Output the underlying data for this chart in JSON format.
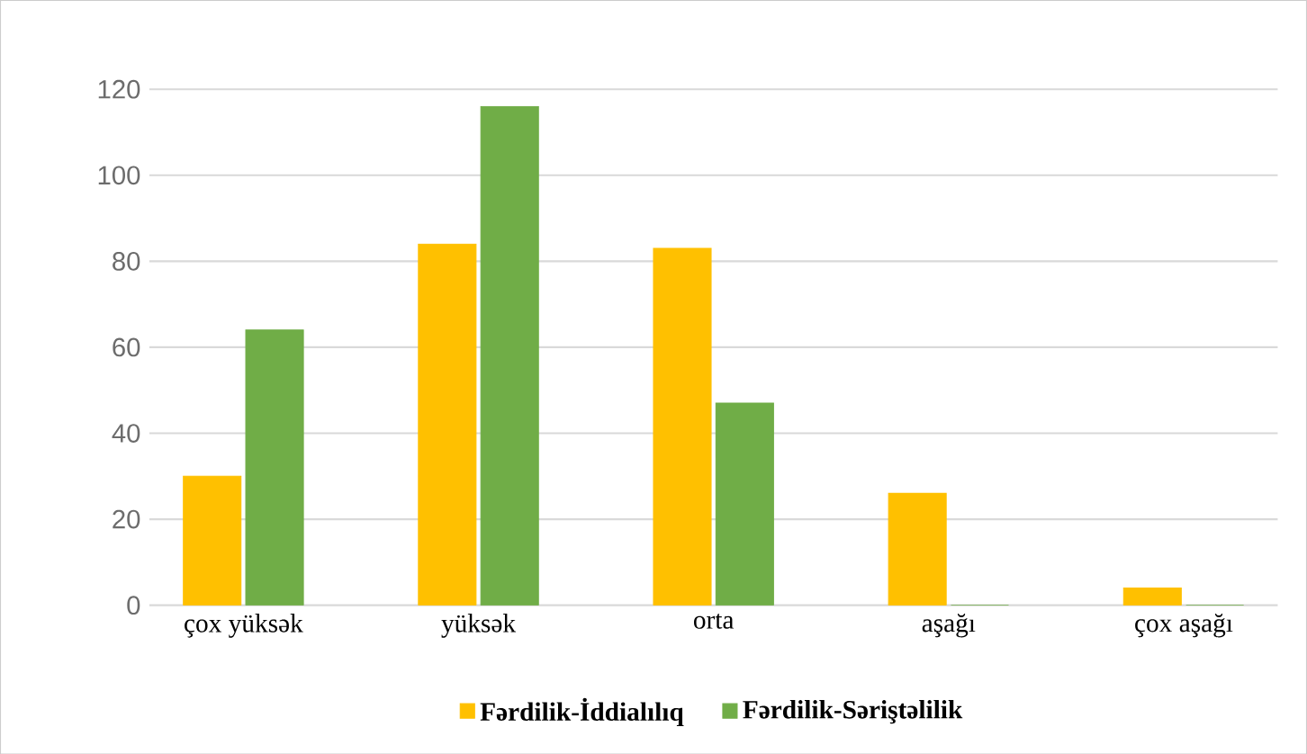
{
  "chart_data": {
    "type": "bar",
    "categories": [
      "çox yüksək",
      "yüksək",
      "orta",
      "aşağı",
      "çox aşağı"
    ],
    "series": [
      {
        "name": "Fərdilik-İddialılıq",
        "color": "#ffc000",
        "values": [
          30,
          84,
          83,
          26,
          4
        ]
      },
      {
        "name": "Fərdilik-Səriştəlilik",
        "color": "#70ad47",
        "values": [
          64,
          116,
          47,
          0,
          0
        ]
      }
    ],
    "ylim": [
      0,
      120
    ],
    "yticks": [
      0,
      20,
      40,
      60,
      80,
      100,
      120
    ],
    "grid": "y",
    "legend": "bottom"
  }
}
